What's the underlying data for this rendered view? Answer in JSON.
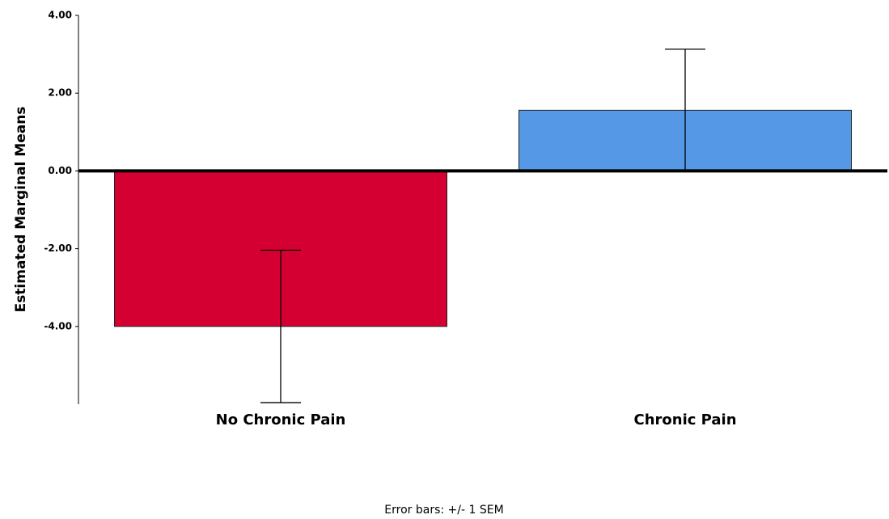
{
  "chart_data": {
    "type": "bar",
    "y_label": "Estimated Marginal Means",
    "footnote": "Error bars: +/- 1 SEM",
    "categories": [
      "No Chronic Pain",
      "Chronic Pain"
    ],
    "values": [
      -4.0,
      1.56
    ],
    "errors": [
      1.96,
      1.57
    ],
    "colors": [
      "#d50032",
      "#5599e6"
    ],
    "ylim": [
      -6,
      4
    ],
    "yticks": [
      {
        "value": 4,
        "label": "4.00"
      },
      {
        "value": 2,
        "label": "2.00"
      },
      {
        "value": 0,
        "label": "0.00"
      },
      {
        "value": -2,
        "label": "-2.00"
      },
      {
        "value": -4,
        "label": "-4.00"
      }
    ],
    "grid": false
  }
}
